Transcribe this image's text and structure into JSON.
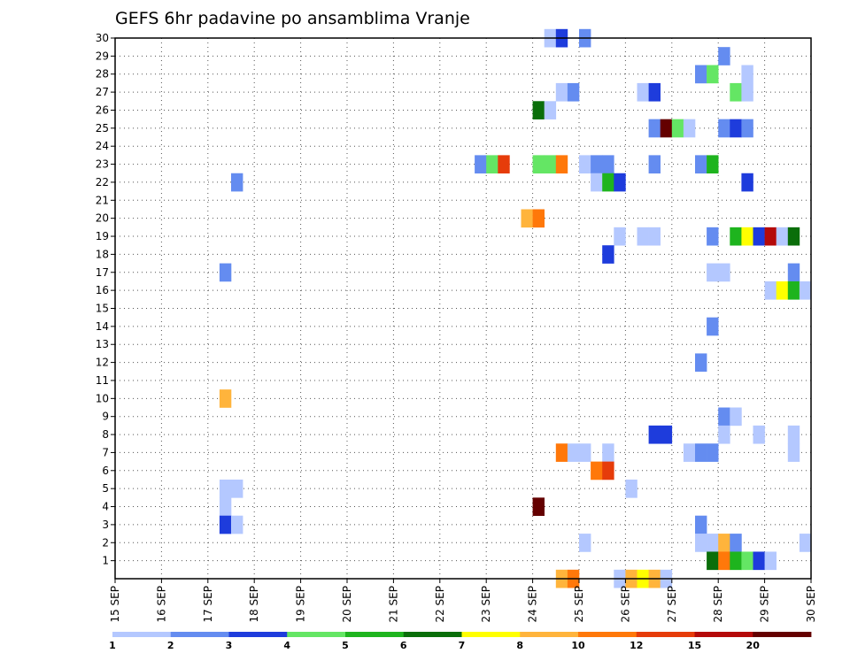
{
  "chart_data": {
    "type": "heatmap",
    "title": "GEFS 6hr padavine po ansamblima Vranje",
    "x_ticks": [
      "15 SEP",
      "16 SEP",
      "17 SEP",
      "18 SEP",
      "19 SEP",
      "20 SEP",
      "21 SEP",
      "22 SEP",
      "23 SEP",
      "24 SEP",
      "25 SEP",
      "26 SEP",
      "27 SEP",
      "28 SEP",
      "29 SEP",
      "30 SEP"
    ],
    "x_range_days": [
      15,
      30
    ],
    "y_ticks": [
      1,
      2,
      3,
      4,
      5,
      6,
      7,
      8,
      9,
      10,
      11,
      12,
      13,
      14,
      15,
      16,
      17,
      18,
      19,
      20,
      21,
      22,
      23,
      24,
      25,
      26,
      27,
      28,
      29,
      30
    ],
    "y_range": [
      0,
      30
    ],
    "grid": true,
    "colorbar": {
      "labels": [
        "1",
        "2",
        "3",
        "4",
        "5",
        "6",
        "7",
        "8",
        "10",
        "12",
        "15",
        "20"
      ],
      "colors": [
        "#b4c8ff",
        "#648cf0",
        "#1e3cdc",
        "#64e664",
        "#1eb41e",
        "#0a6e0a",
        "#ffff00",
        "#ffb43c",
        "#ff780a",
        "#e63c0a",
        "#b40a0a",
        "#640000"
      ]
    },
    "cells": [
      {
        "day": 24.25,
        "member": 30,
        "c": 0
      },
      {
        "day": 24.5,
        "member": 30,
        "c": 2
      },
      {
        "day": 25.0,
        "member": 30,
        "c": 1
      },
      {
        "day": 28.0,
        "member": 29,
        "c": 1
      },
      {
        "day": 27.5,
        "member": 28,
        "c": 1
      },
      {
        "day": 27.75,
        "member": 28,
        "c": 3
      },
      {
        "day": 28.5,
        "member": 28,
        "c": 0
      },
      {
        "day": 24.5,
        "member": 27,
        "c": 0
      },
      {
        "day": 24.75,
        "member": 27,
        "c": 1
      },
      {
        "day": 26.25,
        "member": 27,
        "c": 0
      },
      {
        "day": 26.5,
        "member": 27,
        "c": 2
      },
      {
        "day": 28.25,
        "member": 27,
        "c": 3
      },
      {
        "day": 28.5,
        "member": 27,
        "c": 0
      },
      {
        "day": 24.0,
        "member": 26,
        "c": 5
      },
      {
        "day": 24.25,
        "member": 26,
        "c": 0
      },
      {
        "day": 26.5,
        "member": 25,
        "c": 1
      },
      {
        "day": 26.75,
        "member": 25,
        "c": 11
      },
      {
        "day": 27.0,
        "member": 25,
        "c": 3
      },
      {
        "day": 27.25,
        "member": 25,
        "c": 0
      },
      {
        "day": 28.0,
        "member": 25,
        "c": 1
      },
      {
        "day": 28.25,
        "member": 25,
        "c": 2
      },
      {
        "day": 28.5,
        "member": 25,
        "c": 1
      },
      {
        "day": 22.75,
        "member": 23,
        "c": 1
      },
      {
        "day": 23.0,
        "member": 23,
        "c": 3
      },
      {
        "day": 23.25,
        "member": 23,
        "c": 9
      },
      {
        "day": 24.0,
        "member": 23,
        "c": 3
      },
      {
        "day": 24.25,
        "member": 23,
        "c": 3
      },
      {
        "day": 24.5,
        "member": 23,
        "c": 8
      },
      {
        "day": 25.0,
        "member": 23,
        "c": 0
      },
      {
        "day": 25.25,
        "member": 23,
        "c": 1
      },
      {
        "day": 25.5,
        "member": 23,
        "c": 1
      },
      {
        "day": 26.5,
        "member": 23,
        "c": 1
      },
      {
        "day": 27.5,
        "member": 23,
        "c": 1
      },
      {
        "day": 27.75,
        "member": 23,
        "c": 4
      },
      {
        "day": 17.5,
        "member": 22,
        "c": 1
      },
      {
        "day": 25.25,
        "member": 22,
        "c": 0
      },
      {
        "day": 25.5,
        "member": 22,
        "c": 4
      },
      {
        "day": 25.75,
        "member": 22,
        "c": 2
      },
      {
        "day": 28.5,
        "member": 22,
        "c": 2
      },
      {
        "day": 23.75,
        "member": 20,
        "c": 7
      },
      {
        "day": 24.0,
        "member": 20,
        "c": 8
      },
      {
        "day": 25.75,
        "member": 19,
        "c": 0
      },
      {
        "day": 26.25,
        "member": 19,
        "c": 0
      },
      {
        "day": 26.5,
        "member": 19,
        "c": 0
      },
      {
        "day": 27.75,
        "member": 19,
        "c": 1
      },
      {
        "day": 28.25,
        "member": 19,
        "c": 4
      },
      {
        "day": 28.5,
        "member": 19,
        "c": 6
      },
      {
        "day": 28.75,
        "member": 19,
        "c": 2
      },
      {
        "day": 29.0,
        "member": 19,
        "c": 10
      },
      {
        "day": 29.25,
        "member": 19,
        "c": 0
      },
      {
        "day": 29.5,
        "member": 19,
        "c": 5
      },
      {
        "day": 25.5,
        "member": 18,
        "c": 2
      },
      {
        "day": 17.25,
        "member": 17,
        "c": 1
      },
      {
        "day": 27.75,
        "member": 17,
        "c": 0
      },
      {
        "day": 28.0,
        "member": 17,
        "c": 0
      },
      {
        "day": 29.5,
        "member": 17,
        "c": 1
      },
      {
        "day": 29.0,
        "member": 16,
        "c": 0
      },
      {
        "day": 29.25,
        "member": 16,
        "c": 6
      },
      {
        "day": 29.5,
        "member": 16,
        "c": 4
      },
      {
        "day": 29.75,
        "member": 16,
        "c": 0
      },
      {
        "day": 27.75,
        "member": 14,
        "c": 1
      },
      {
        "day": 27.5,
        "member": 12,
        "c": 1
      },
      {
        "day": 17.25,
        "member": 10,
        "c": 7
      },
      {
        "day": 28.0,
        "member": 9,
        "c": 1
      },
      {
        "day": 28.25,
        "member": 9,
        "c": 0
      },
      {
        "day": 26.5,
        "member": 8,
        "c": 2
      },
      {
        "day": 26.75,
        "member": 8,
        "c": 2
      },
      {
        "day": 28.0,
        "member": 8,
        "c": 0
      },
      {
        "day": 28.75,
        "member": 8,
        "c": 0
      },
      {
        "day": 29.5,
        "member": 8,
        "c": 0
      },
      {
        "day": 24.5,
        "member": 7,
        "c": 8
      },
      {
        "day": 24.75,
        "member": 7,
        "c": 0
      },
      {
        "day": 25.0,
        "member": 7,
        "c": 0
      },
      {
        "day": 25.5,
        "member": 7,
        "c": 0
      },
      {
        "day": 27.25,
        "member": 7,
        "c": 0
      },
      {
        "day": 27.5,
        "member": 7,
        "c": 1
      },
      {
        "day": 27.75,
        "member": 7,
        "c": 1
      },
      {
        "day": 29.5,
        "member": 7,
        "c": 0
      },
      {
        "day": 25.25,
        "member": 6,
        "c": 8
      },
      {
        "day": 25.5,
        "member": 6,
        "c": 9
      },
      {
        "day": 17.25,
        "member": 5,
        "c": 0
      },
      {
        "day": 17.5,
        "member": 5,
        "c": 0
      },
      {
        "day": 26.0,
        "member": 5,
        "c": 0
      },
      {
        "day": 17.25,
        "member": 4,
        "c": 0
      },
      {
        "day": 24.0,
        "member": 4,
        "c": 11
      },
      {
        "day": 17.25,
        "member": 3,
        "c": 2
      },
      {
        "day": 17.5,
        "member": 3,
        "c": 0
      },
      {
        "day": 27.5,
        "member": 3,
        "c": 1
      },
      {
        "day": 25.0,
        "member": 2,
        "c": 0
      },
      {
        "day": 27.5,
        "member": 2,
        "c": 0
      },
      {
        "day": 27.75,
        "member": 2,
        "c": 0
      },
      {
        "day": 28.0,
        "member": 2,
        "c": 7
      },
      {
        "day": 28.25,
        "member": 2,
        "c": 1
      },
      {
        "day": 29.75,
        "member": 2,
        "c": 0
      },
      {
        "day": 27.75,
        "member": 1,
        "c": 5
      },
      {
        "day": 28.0,
        "member": 1,
        "c": 8
      },
      {
        "day": 28.25,
        "member": 1,
        "c": 4
      },
      {
        "day": 28.5,
        "member": 1,
        "c": 3
      },
      {
        "day": 28.75,
        "member": 1,
        "c": 2
      },
      {
        "day": 29.0,
        "member": 1,
        "c": 0
      },
      {
        "day": 24.5,
        "member": 0,
        "c": 7
      },
      {
        "day": 24.75,
        "member": 0,
        "c": 8
      },
      {
        "day": 25.75,
        "member": 0,
        "c": 0
      },
      {
        "day": 26.0,
        "member": 0,
        "c": 7
      },
      {
        "day": 26.25,
        "member": 0,
        "c": 6
      },
      {
        "day": 26.5,
        "member": 0,
        "c": 7
      },
      {
        "day": 26.75,
        "member": 0,
        "c": 0
      }
    ]
  }
}
